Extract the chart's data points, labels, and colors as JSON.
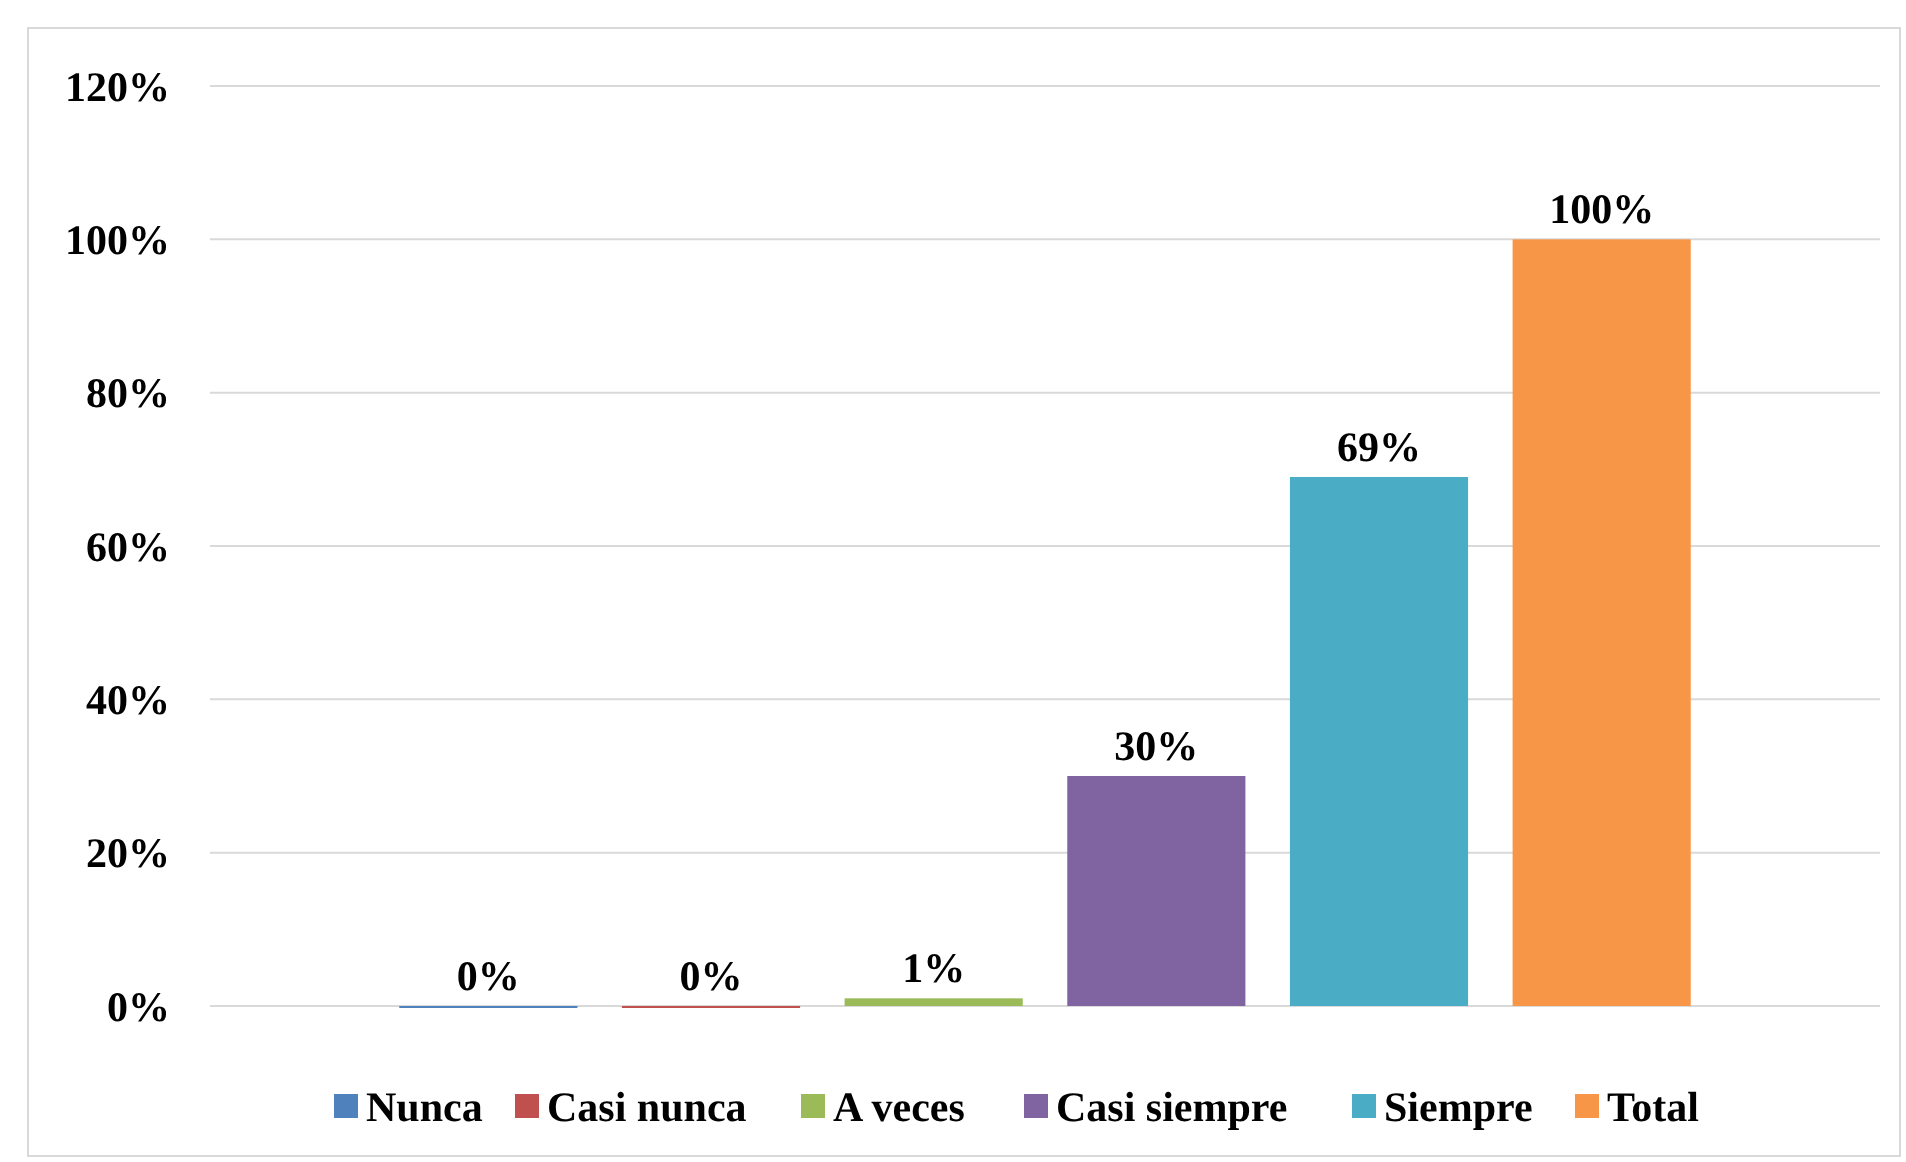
{
  "chart_data": {
    "type": "bar",
    "categories": [
      null
    ],
    "series": [
      {
        "name": "Nunca",
        "color": "#4f81bd",
        "values": [
          0
        ],
        "value_labels": [
          "0%"
        ]
      },
      {
        "name": "Casi nunca",
        "color": "#c0504d",
        "values": [
          0
        ],
        "value_labels": [
          "0%"
        ]
      },
      {
        "name": "A veces",
        "color": "#9bbb59",
        "values": [
          1
        ],
        "value_labels": [
          "1%"
        ]
      },
      {
        "name": "Casi siempre",
        "color": "#8064a2",
        "values": [
          30
        ],
        "value_labels": [
          "30%"
        ]
      },
      {
        "name": "Siempre",
        "color": "#4bacc6",
        "values": [
          69
        ],
        "value_labels": [
          "69%"
        ]
      },
      {
        "name": "Total",
        "color": "#f79646",
        "values": [
          100
        ],
        "value_labels": [
          "100%"
        ]
      }
    ],
    "ylim": [
      0,
      120
    ],
    "yticks": [
      {
        "value": 0,
        "label": "0%"
      },
      {
        "value": 20,
        "label": "20%"
      },
      {
        "value": 40,
        "label": "40%"
      },
      {
        "value": 60,
        "label": "60%"
      },
      {
        "value": 80,
        "label": "80%"
      },
      {
        "value": 100,
        "label": "100%"
      },
      {
        "value": 120,
        "label": "120%"
      }
    ],
    "grid": "y",
    "legend": "bottom"
  }
}
